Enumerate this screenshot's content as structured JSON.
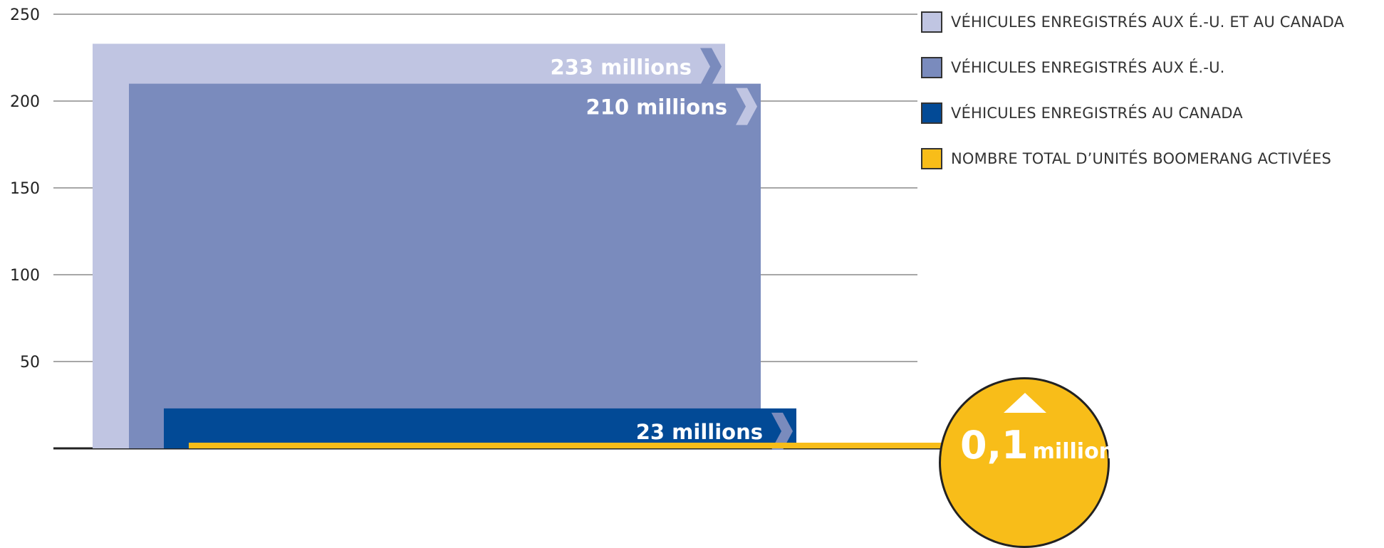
{
  "chart_data": {
    "type": "bar",
    "ylim": [
      0,
      250
    ],
    "yticks": [
      "250",
      "200",
      "150",
      "100",
      "50"
    ],
    "series": [
      {
        "name": "VÉHICULES ENREGISTRÉS AUX É.-U. ET AU CANADA",
        "value": 233,
        "label": "233 millions",
        "color": "#c0c5e2"
      },
      {
        "name": "VÉHICULES ENREGISTRÉS AUX É.-U.",
        "value": 210,
        "label": "210 millions",
        "color": "#7a8bbd"
      },
      {
        "name": "VÉHICULES ENREGISTRÉS AU CANADA",
        "value": 23,
        "label": "23 millions",
        "color": "#024a96"
      },
      {
        "name": "NOMBRE TOTAL D’UNITÉS BOOMERANG ACTIVÉES",
        "value": 0.1,
        "label_big": "0,1",
        "label_small": "million",
        "color": "#f8bd19"
      }
    ]
  }
}
